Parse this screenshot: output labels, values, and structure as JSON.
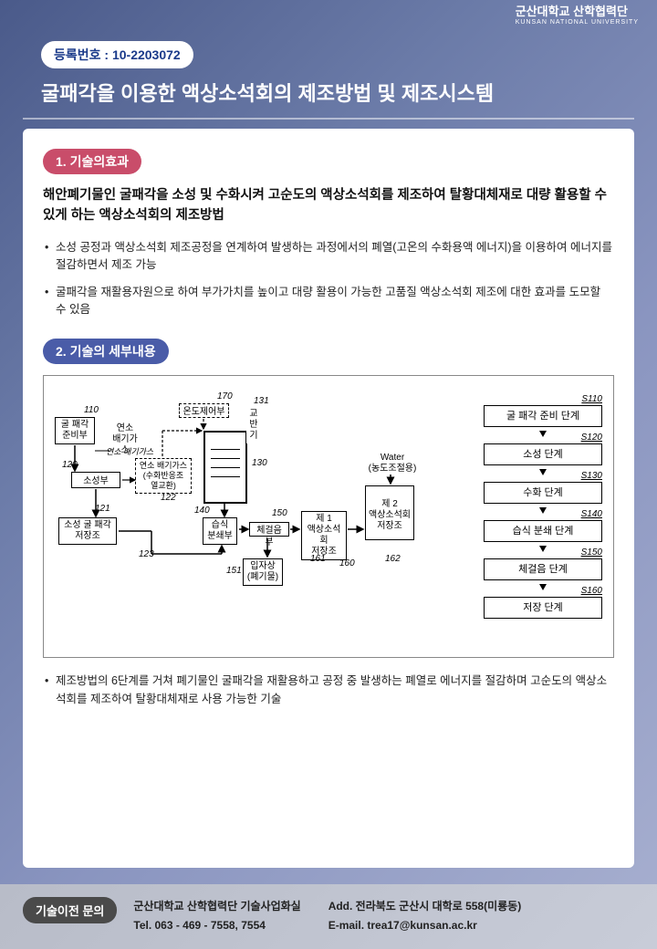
{
  "header": {
    "univ": "군산대학교 산학협력단",
    "sub": "KUNSAN NATIONAL UNIVERSITY"
  },
  "reg": "등록번호 : 10-2203072",
  "title": "굴패각을 이용한 액상소석회의 제조방법 및 제조시스템",
  "section1": {
    "pill": "1. 기술의효과",
    "lead": "해안폐기물인 굴패각을 소성 및 수화시켜 고순도의 액상소석회를 제조하여 탈황대체재로 대량 활용할 수 있게 하는 액상소석회의 제조방법",
    "bullets": [
      "소성 공정과 액상소석회 제조공정을 연계하여 발생하는 과정에서의 폐열(고온의 수화용액 에너지)을 이용하여 에너지를 절감하면서 제조 가능",
      "굴패각을 재활용자원으로 하여 부가가치를 높이고 대량 활용이 가능한 고품질 액상소석회 제조에 대한 효과를 도모할 수 있음"
    ]
  },
  "section2": {
    "pill": "2. 기술의 세부내용",
    "footnote": "제조방법의 6단계를 거쳐 폐기물인 굴패각을 재활용하고 공정 중 발생하는 폐열로 에너지를 절감하며 고순도의 액상소석회를 제조하여 탈황대체재로 사용 가능한 기술"
  },
  "diagram": {
    "blocks": {
      "b110": "굴 패각\n준비부",
      "b120": "소성부",
      "b121": "소성 굴 패각\n저장조",
      "b122": "연소 배기가스\n(수화반응조\n열교환)",
      "b131": "교\n반\n기",
      "b140": "습식\n분쇄부",
      "b150": "체걸음부",
      "b151": "입자상\n(폐기물)",
      "b160": "제 1\n액상소석회\n저장조",
      "b162": "제 2\n액상소석회\n저장조",
      "b170": "온도제어부",
      "water": "Water\n(농도조절용)",
      "gas": "연소\n배기가스"
    },
    "labels": {
      "l110": "110",
      "l120": "120",
      "l121": "121",
      "l122": "122",
      "l123": "123",
      "l130": "130",
      "l131": "131",
      "l140": "140",
      "l150": "150",
      "l151": "151",
      "l160": "160",
      "l161": "161",
      "l162": "162",
      "l170": "170"
    },
    "steps": [
      {
        "s": "S110",
        "t": "굴 패각 준비 단계"
      },
      {
        "s": "S120",
        "t": "소성 단계"
      },
      {
        "s": "S130",
        "t": "수화 단계"
      },
      {
        "s": "S140",
        "t": "습식 분쇄 단계"
      },
      {
        "s": "S150",
        "t": "체걸음 단계"
      },
      {
        "s": "S160",
        "t": "저장 단계"
      }
    ]
  },
  "footer": {
    "pill": "기술이전 문의",
    "org": "군산대학교 산학협력단 기술사업화실",
    "tel": "Tel. 063 - 469 - 7558, 7554",
    "addr": "Add. 전라북도 군산시 대학로 558(미룡동)",
    "email": "E-mail. trea17@kunsan.ac.kr"
  }
}
